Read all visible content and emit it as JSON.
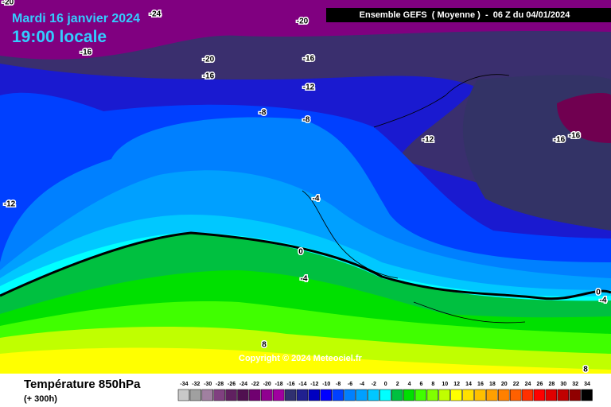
{
  "header": {
    "date": "Mardi 16 janvier 2024",
    "time": "19:00 locale",
    "model": "Ensemble GEFS  ( Moyenne )  -  06 Z du 04/01/2024"
  },
  "map": {
    "contour_labels": [
      "-20",
      "-24",
      "-20",
      "-16",
      "-20",
      "-16",
      "-16",
      "-12",
      "-8",
      "-8",
      "-12",
      "-16",
      "-16",
      "-12",
      "-4",
      "0",
      "-4",
      "8",
      "0",
      "-4",
      "8"
    ],
    "copyright": "Copyright © 2024 Meteociel.fr"
  },
  "legend": {
    "title": "Température 850hPa",
    "subtitle": "(+ 300h)",
    "values": [
      -34,
      -32,
      -30,
      -28,
      -26,
      -24,
      -22,
      -20,
      -18,
      -16,
      -14,
      -12,
      -10,
      -8,
      -6,
      -4,
      -2,
      0,
      2,
      4,
      6,
      8,
      10,
      12,
      14,
      16,
      18,
      20,
      22,
      24,
      26,
      28,
      30,
      32,
      34
    ],
    "colors": [
      "#c8c8c8",
      "#a0a0a0",
      "#a080a0",
      "#804080",
      "#602060",
      "#501050",
      "#700070",
      "#900090",
      "#a000a0",
      "#303070",
      "#202090",
      "#0000c0",
      "#0000ff",
      "#0040ff",
      "#0080ff",
      "#00a0ff",
      "#00c8ff",
      "#00ffff",
      "#00c040",
      "#00e000",
      "#40ff00",
      "#80ff00",
      "#c0ff00",
      "#ffff00",
      "#ffe000",
      "#ffc000",
      "#ffa000",
      "#ff8000",
      "#ff6000",
      "#ff3000",
      "#ff0000",
      "#e00000",
      "#c00000",
      "#900000",
      "#000000"
    ]
  }
}
